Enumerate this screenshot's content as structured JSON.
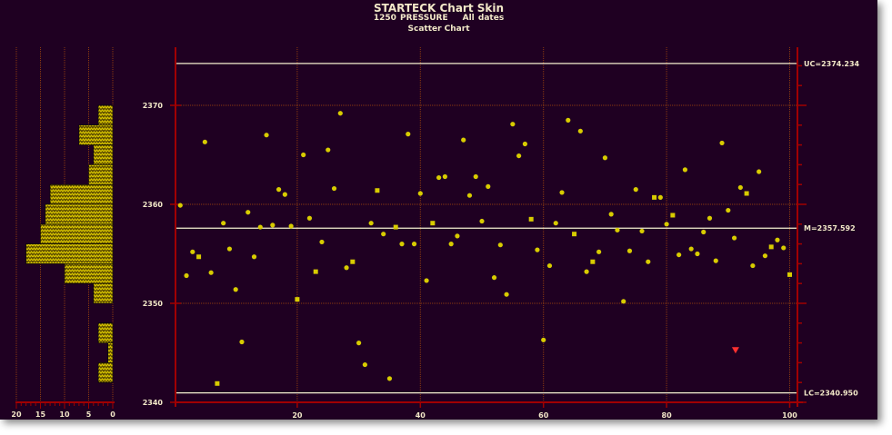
{
  "chart_data": {
    "type": "scatter",
    "title": "STARTECK Chart Skin",
    "subtitle": [
      "1250 PRESSURE",
      "All dates"
    ],
    "chart_label": "Scatter Chart",
    "xlim": [
      0,
      101
    ],
    "ylim": [
      2340,
      2376
    ],
    "x_ticks": [
      20,
      40,
      60,
      80,
      100
    ],
    "y_ticks": [
      2340,
      2350,
      2360,
      2370
    ],
    "grid": true,
    "control_lines": [
      {
        "label": "UC=2374.234",
        "value": 2374.234
      },
      {
        "label": "M=2357.592",
        "value": 2357.592
      },
      {
        "label": "LC=2340.950",
        "value": 2340.95
      }
    ],
    "points": [
      2359.9,
      2352.8,
      2355.2,
      2354.7,
      2366.3,
      2353.1,
      2341.9,
      2358.1,
      2355.5,
      2351.4,
      2346.1,
      2359.2,
      2354.7,
      2357.7,
      2367.0,
      2357.9,
      2361.5,
      2361.0,
      2357.8,
      2350.4,
      2365.0,
      2358.6,
      2353.2,
      2356.2,
      2365.5,
      2361.6,
      2369.2,
      2353.6,
      2354.2,
      2346.0,
      2343.8,
      2358.1,
      2361.4,
      2357.0,
      2342.4,
      2357.7,
      2356.0,
      2367.1,
      2356.0,
      2361.1,
      2352.3,
      2358.1,
      2362.7,
      2362.8,
      2356.0,
      2356.8,
      2366.5,
      2360.9,
      2362.8,
      2358.3,
      2361.8,
      2352.6,
      2355.9,
      2350.9,
      2368.1,
      2364.9,
      2366.1,
      2358.5,
      2355.4,
      2346.3,
      2353.8,
      2358.1,
      2361.2,
      2368.5,
      2357.0,
      2367.4,
      2353.2,
      2354.2,
      2355.2,
      2364.7,
      2359.0,
      2357.4,
      2350.2,
      2355.3,
      2361.5,
      2357.3,
      2354.2,
      2360.7,
      2360.7,
      2358.0,
      2358.9,
      2354.9,
      2363.5,
      2355.5,
      2355.0,
      2357.2,
      2358.6,
      2354.3,
      2366.2,
      2359.4,
      2356.6,
      2361.7,
      2361.1,
      2353.8,
      2363.3,
      2354.8,
      2355.7,
      2356.4,
      2355.6,
      2352.9
    ],
    "square_marker_points": [
      4,
      7,
      20,
      23,
      29,
      33,
      36,
      42,
      58,
      65,
      68,
      78,
      81,
      93,
      97,
      100
    ],
    "alarm_marker": {
      "x": 91.2,
      "y": 2345.3,
      "shape": "triangle-down",
      "color": "#ff3030"
    },
    "histogram": {
      "orientation": "horizontal",
      "bin_width": 2,
      "bins_start": [
        2368,
        2366,
        2364,
        2362,
        2360,
        2358,
        2356,
        2354,
        2352,
        2350,
        2348,
        2346,
        2344,
        2342
      ],
      "counts": [
        3,
        7,
        4,
        5,
        13,
        14,
        15,
        18,
        10,
        4,
        0,
        3,
        1,
        3
      ],
      "xlim": [
        20,
        0
      ],
      "x_ticks": [
        20,
        15,
        10,
        5,
        0
      ]
    },
    "colors": {
      "background": "#1f0022",
      "axis": "#a00000",
      "grid": "#8b3a10",
      "control_line": "#f5f0d0",
      "points": "#d8cc00",
      "text": "#f2e8c8"
    }
  }
}
